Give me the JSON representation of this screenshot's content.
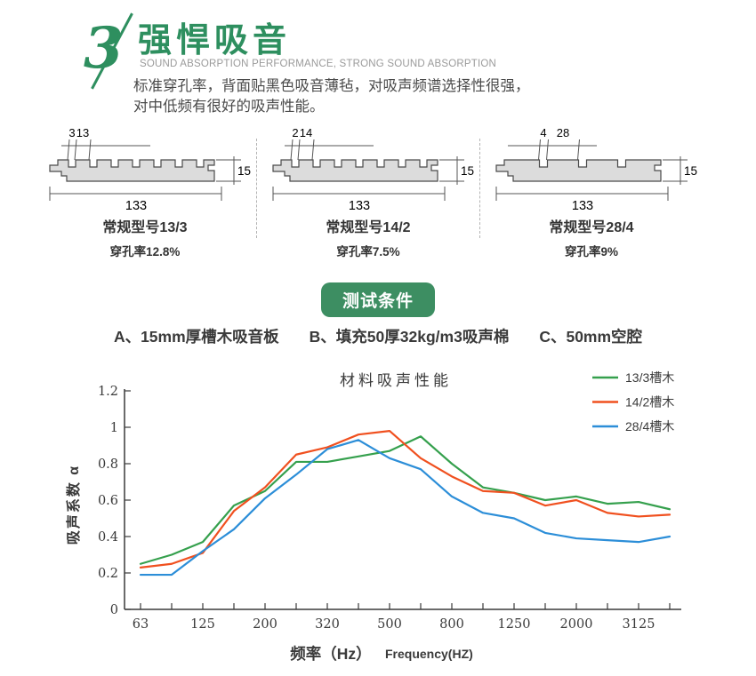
{
  "header": {
    "section_number": "3",
    "title": "强悍吸音",
    "subtitle": "SOUND ABSORPTION PERFORMANCE, STRONG SOUND ABSORPTION",
    "description_line1": "标准穿孔率，背面贴黑色吸音薄毡，对吸声频谱选择性很强，",
    "description_line2": "对中低频有很好的吸声性能。"
  },
  "diagrams": [
    {
      "model": "常规型号13/3",
      "perforation": "穿孔率12.8%",
      "grooves": 7,
      "dim_slot": "3",
      "dim_pitch": "13",
      "dim_thickness": "15",
      "dim_width": "133"
    },
    {
      "model": "常规型号14/2",
      "perforation": "穿孔率7.5%",
      "grooves": 7,
      "dim_slot": "2",
      "dim_pitch": "14",
      "dim_thickness": "15",
      "dim_width": "133"
    },
    {
      "model": "常规型号28/4",
      "perforation": "穿孔率9%",
      "grooves": 3,
      "dim_slot": "4",
      "dim_pitch": "28",
      "dim_thickness": "15",
      "dim_width": "133"
    }
  ],
  "badge": {
    "label": "测试条件"
  },
  "conditions": [
    "A、15mm厚槽木吸音板",
    "B、填充50厚32kg/m3吸声棉",
    "C、50mm空腔"
  ],
  "chart_data": {
    "type": "line",
    "title": "材料吸声性能",
    "xlabel_cn": "频率（Hz）",
    "xlabel_en": "Frequency(HZ)",
    "ylabel": "吸声系数 α",
    "x_tick_labels": [
      "63",
      "",
      "125",
      "",
      "200",
      "",
      "320",
      "",
      "500",
      "",
      "800",
      "",
      "1250",
      "",
      "2000",
      "",
      "3125",
      ""
    ],
    "y_ticks": [
      0,
      0.2,
      0.4,
      0.6,
      0.8,
      1,
      1.2
    ],
    "y_tick_labels": [
      "0",
      "0.2",
      "0.4",
      "0.6",
      "0.8",
      "1",
      "1.2"
    ],
    "ylim": [
      0,
      1.2
    ],
    "grid": false,
    "legend_position": "top-right",
    "series": [
      {
        "name": "13/3槽木",
        "color": "#35a04d",
        "values": [
          0.25,
          0.3,
          0.37,
          0.57,
          0.65,
          0.81,
          0.81,
          0.84,
          0.87,
          0.95,
          0.8,
          0.67,
          0.64,
          0.6,
          0.62,
          0.58,
          0.59,
          0.55
        ]
      },
      {
        "name": "14/2槽木",
        "color": "#f0501f",
        "values": [
          0.23,
          0.25,
          0.31,
          0.54,
          0.67,
          0.85,
          0.89,
          0.96,
          0.98,
          0.83,
          0.73,
          0.65,
          0.64,
          0.57,
          0.6,
          0.53,
          0.51,
          0.52
        ]
      },
      {
        "name": "28/4槽木",
        "color": "#2c8ed8",
        "values": [
          0.19,
          0.19,
          0.32,
          0.44,
          0.61,
          0.74,
          0.88,
          0.93,
          0.83,
          0.77,
          0.62,
          0.53,
          0.5,
          0.42,
          0.39,
          0.38,
          0.37,
          0.4
        ]
      }
    ]
  },
  "colors": {
    "accent_green": "#2e8f5f",
    "badge_green": "#3d8e62",
    "panel_fill": "#dcdcdc",
    "panel_stroke": "#4a4a4a",
    "axis": "#3a3a3a"
  }
}
